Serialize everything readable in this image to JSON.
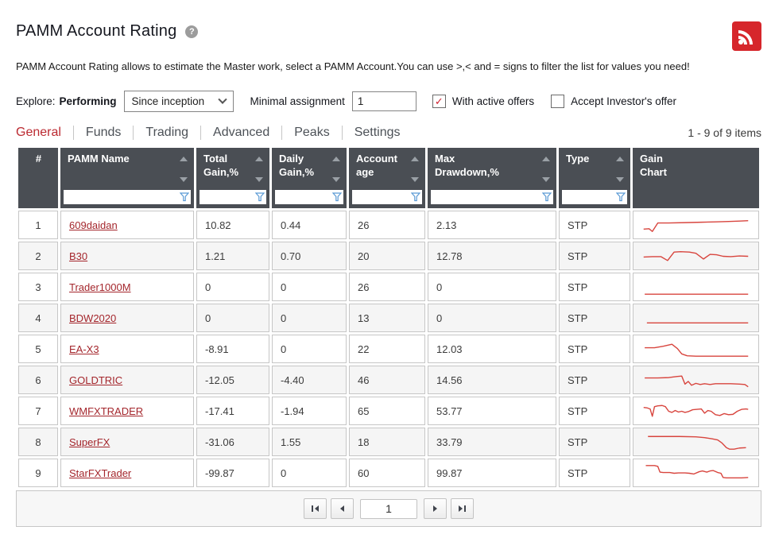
{
  "page": {
    "title": "PAMM Account Rating",
    "help_glyph": "?"
  },
  "description": "PAMM Account Rating allows to estimate the Master work, select a PAMM Account.You can use >,< and = signs to filter the list for values you need!",
  "filters": {
    "explore_label": "Explore:",
    "explore_mode": "Performing",
    "period_value": "Since inception",
    "minimal_assignment_label": "Minimal assignment",
    "minimal_assignment_value": "1",
    "with_active_offers_label": "With active offers",
    "with_active_offers_checked": true,
    "check_glyph": "✓",
    "accept_investors_offer_label": "Accept Investor's offer",
    "accept_investors_offer_checked": false
  },
  "tabs": [
    {
      "label": "General",
      "active": true
    },
    {
      "label": "Funds",
      "active": false
    },
    {
      "label": "Trading",
      "active": false
    },
    {
      "label": "Advanced",
      "active": false
    },
    {
      "label": "Peaks",
      "active": false
    },
    {
      "label": "Settings",
      "active": false
    }
  ],
  "items_count": "1 - 9 of 9 items",
  "table": {
    "columns": [
      {
        "label": "#",
        "sortable": false,
        "filterable": false
      },
      {
        "label": "PAMM Name",
        "sortable": true,
        "filterable": true
      },
      {
        "label": "Total\nGain,%",
        "sortable": true,
        "filterable": true
      },
      {
        "label": "Daily\nGain,%",
        "sortable": true,
        "filterable": true
      },
      {
        "label": "Account\nage",
        "sortable": true,
        "filterable": true
      },
      {
        "label": "Max\nDrawdown,%",
        "sortable": true,
        "filterable": true
      },
      {
        "label": "Type",
        "sortable": true,
        "filterable": true
      },
      {
        "label": "Gain\nChart",
        "sortable": false,
        "filterable": false
      }
    ],
    "rows": [
      {
        "num": "1",
        "name": "609daidan",
        "total_gain": "10.82",
        "daily_gain": "0.44",
        "age": "26",
        "max_drawdown": "2.13",
        "type": "STP",
        "spark": [
          [
            2,
            20
          ],
          [
            7,
            19.5
          ],
          [
            10,
            23
          ],
          [
            15,
            12
          ],
          [
            25,
            12
          ],
          [
            40,
            11.5
          ],
          [
            55,
            11
          ],
          [
            68,
            10.5
          ],
          [
            80,
            10
          ],
          [
            90,
            9.5
          ],
          [
            98,
            9
          ]
        ]
      },
      {
        "num": "2",
        "name": "B30",
        "total_gain": "1.21",
        "daily_gain": "0.70",
        "age": "20",
        "max_drawdown": "12.78",
        "type": "STP",
        "spark": [
          [
            2,
            16
          ],
          [
            10,
            15.5
          ],
          [
            18,
            15.5
          ],
          [
            24,
            20.5
          ],
          [
            30,
            9.5
          ],
          [
            36,
            9
          ],
          [
            44,
            9.5
          ],
          [
            50,
            11
          ],
          [
            57,
            18.5
          ],
          [
            63,
            12.5
          ],
          [
            69,
            13
          ],
          [
            75,
            15
          ],
          [
            82,
            15.5
          ],
          [
            90,
            14.5
          ],
          [
            98,
            15
          ]
        ]
      },
      {
        "num": "3",
        "name": "Trader1000M",
        "total_gain": "0",
        "daily_gain": "0",
        "age": "26",
        "max_drawdown": "0",
        "type": "STP",
        "spark": [
          [
            3,
            24
          ],
          [
            98,
            24
          ]
        ]
      },
      {
        "num": "4",
        "name": "BDW2020",
        "total_gain": "0",
        "daily_gain": "0",
        "age": "13",
        "max_drawdown": "0",
        "type": "STP",
        "spark": [
          [
            5,
            21
          ],
          [
            98,
            21
          ]
        ]
      },
      {
        "num": "5",
        "name": "EA-X3",
        "total_gain": "-8.91",
        "daily_gain": "0",
        "age": "22",
        "max_drawdown": "12.03",
        "type": "STP",
        "spark": [
          [
            3,
            13
          ],
          [
            12,
            13
          ],
          [
            20,
            11
          ],
          [
            28,
            8.5
          ],
          [
            33,
            14
          ],
          [
            37,
            21
          ],
          [
            42,
            23.5
          ],
          [
            50,
            24
          ],
          [
            98,
            24
          ]
        ]
      },
      {
        "num": "6",
        "name": "GOLDTRIC",
        "total_gain": "-12.05",
        "daily_gain": "-4.40",
        "age": "46",
        "max_drawdown": "14.56",
        "type": "STP",
        "spark": [
          [
            3,
            12
          ],
          [
            15,
            12
          ],
          [
            25,
            11.5
          ],
          [
            33,
            10
          ],
          [
            37,
            9.5
          ],
          [
            40,
            20
          ],
          [
            43,
            16.5
          ],
          [
            46,
            21.5
          ],
          [
            50,
            19
          ],
          [
            54,
            20.5
          ],
          [
            58,
            19.5
          ],
          [
            63,
            20.5
          ],
          [
            68,
            19.5
          ],
          [
            75,
            19.5
          ],
          [
            82,
            19.5
          ],
          [
            90,
            20
          ],
          [
            95,
            20.5
          ],
          [
            98,
            23.5
          ]
        ]
      },
      {
        "num": "7",
        "name": "WMFXTRADER",
        "total_gain": "-17.41",
        "daily_gain": "-1.94",
        "age": "65",
        "max_drawdown": "53.77",
        "type": "STP",
        "spark": [
          [
            2,
            10
          ],
          [
            5,
            10.5
          ],
          [
            8,
            12
          ],
          [
            10,
            21.5
          ],
          [
            12,
            9
          ],
          [
            15,
            8
          ],
          [
            19,
            7.5
          ],
          [
            22,
            9
          ],
          [
            25,
            15
          ],
          [
            28,
            16.5
          ],
          [
            31,
            14
          ],
          [
            34,
            16
          ],
          [
            37,
            15
          ],
          [
            40,
            16.5
          ],
          [
            43,
            15.5
          ],
          [
            47,
            13
          ],
          [
            51,
            12.5
          ],
          [
            55,
            12
          ],
          [
            58,
            17.5
          ],
          [
            61,
            14
          ],
          [
            64,
            15
          ],
          [
            68,
            19.5
          ],
          [
            72,
            20.5
          ],
          [
            76,
            18
          ],
          [
            80,
            19.5
          ],
          [
            84,
            19
          ],
          [
            88,
            15
          ],
          [
            92,
            12.5
          ],
          [
            96,
            12
          ],
          [
            98,
            12.5
          ]
        ]
      },
      {
        "num": "8",
        "name": "SuperFX",
        "total_gain": "-31.06",
        "daily_gain": "1.55",
        "age": "18",
        "max_drawdown": "33.79",
        "type": "STP",
        "spark": [
          [
            6,
            7.5
          ],
          [
            20,
            7.5
          ],
          [
            35,
            7.5
          ],
          [
            50,
            8
          ],
          [
            58,
            9
          ],
          [
            65,
            10.5
          ],
          [
            70,
            12
          ],
          [
            74,
            16
          ],
          [
            78,
            22
          ],
          [
            81,
            24
          ],
          [
            85,
            24
          ],
          [
            90,
            22.5
          ],
          [
            96,
            22
          ]
        ]
      },
      {
        "num": "9",
        "name": "StarFXTrader",
        "total_gain": "-99.87",
        "daily_gain": "0",
        "age": "60",
        "max_drawdown": "99.87",
        "type": "STP",
        "spark": [
          [
            4,
            5
          ],
          [
            12,
            5
          ],
          [
            15,
            6
          ],
          [
            17,
            13.5
          ],
          [
            20,
            14
          ],
          [
            26,
            14
          ],
          [
            30,
            15
          ],
          [
            34,
            14.5
          ],
          [
            40,
            14.5
          ],
          [
            44,
            15
          ],
          [
            48,
            16
          ],
          [
            53,
            13
          ],
          [
            56,
            12
          ],
          [
            60,
            13.5
          ],
          [
            63,
            12
          ],
          [
            66,
            11.5
          ],
          [
            70,
            14
          ],
          [
            73,
            15
          ],
          [
            75,
            20.5
          ],
          [
            78,
            21
          ],
          [
            85,
            21
          ],
          [
            92,
            21
          ],
          [
            98,
            20.5
          ]
        ]
      }
    ]
  },
  "pagination": {
    "current_page": "1"
  },
  "colors": {
    "accent_red": "#bb2a31",
    "link_red": "#a4262c",
    "sparkline": "#d8453e",
    "header_bg": "#4a4e54",
    "rss_red": "#d6262b",
    "filter_icon_blue": "#5b9bd5",
    "check_red": "#cf2030"
  }
}
